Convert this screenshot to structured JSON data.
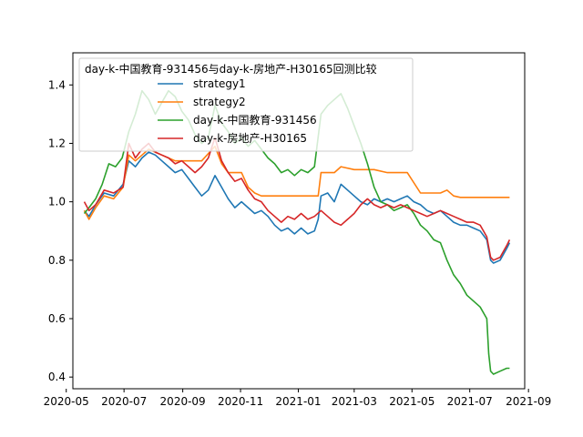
{
  "chart_data": {
    "type": "line",
    "legend_title": "day-k-中国教育-931456与day-k-房地产-H30165回测比较",
    "legend_position": "top-left",
    "grid": false,
    "xlim": [
      "2020-05-08",
      "2021-08-28"
    ],
    "ylim": [
      0.36,
      1.51
    ],
    "x_ticks": [
      "2020-05",
      "2020-07",
      "2020-09",
      "2020-11",
      "2021-01",
      "2021-03",
      "2021-05",
      "2021-07",
      "2021-09"
    ],
    "x_tick_dates": [
      "2020-05-01",
      "2020-07-01",
      "2020-09-01",
      "2020-11-01",
      "2021-01-01",
      "2021-03-01",
      "2021-05-01",
      "2021-07-01",
      "2021-09-01"
    ],
    "y_ticks": [
      0.4,
      0.6,
      0.8,
      1.0,
      1.2,
      1.4
    ],
    "y_tick_labels": [
      "0.4",
      "0.6",
      "0.8",
      "1.0",
      "1.2",
      "1.4"
    ],
    "series": [
      {
        "name": "strategy1",
        "color": "#1f77b4",
        "points": [
          [
            "2020-05-20",
            0.97
          ],
          [
            "2020-05-25",
            0.95
          ],
          [
            "2020-06-01",
            0.99
          ],
          [
            "2020-06-10",
            1.03
          ],
          [
            "2020-06-20",
            1.02
          ],
          [
            "2020-06-30",
            1.06
          ],
          [
            "2020-07-06",
            1.14
          ],
          [
            "2020-07-13",
            1.12
          ],
          [
            "2020-07-20",
            1.15
          ],
          [
            "2020-07-27",
            1.17
          ],
          [
            "2020-08-03",
            1.16
          ],
          [
            "2020-08-10",
            1.14
          ],
          [
            "2020-08-17",
            1.12
          ],
          [
            "2020-08-24",
            1.1
          ],
          [
            "2020-08-31",
            1.11
          ],
          [
            "2020-09-07",
            1.08
          ],
          [
            "2020-09-14",
            1.05
          ],
          [
            "2020-09-21",
            1.02
          ],
          [
            "2020-09-28",
            1.04
          ],
          [
            "2020-10-05",
            1.09
          ],
          [
            "2020-10-12",
            1.05
          ],
          [
            "2020-10-19",
            1.01
          ],
          [
            "2020-10-26",
            0.98
          ],
          [
            "2020-11-02",
            1.0
          ],
          [
            "2020-11-09",
            0.98
          ],
          [
            "2020-11-16",
            0.96
          ],
          [
            "2020-11-23",
            0.97
          ],
          [
            "2020-11-30",
            0.95
          ],
          [
            "2020-12-07",
            0.92
          ],
          [
            "2020-12-14",
            0.9
          ],
          [
            "2020-12-21",
            0.91
          ],
          [
            "2020-12-28",
            0.89
          ],
          [
            "2021-01-04",
            0.91
          ],
          [
            "2021-01-11",
            0.89
          ],
          [
            "2021-01-18",
            0.9
          ],
          [
            "2021-01-22",
            0.94
          ],
          [
            "2021-01-25",
            1.02
          ],
          [
            "2021-02-01",
            1.03
          ],
          [
            "2021-02-08",
            1.0
          ],
          [
            "2021-02-15",
            1.06
          ],
          [
            "2021-02-22",
            1.04
          ],
          [
            "2021-03-01",
            1.02
          ],
          [
            "2021-03-08",
            1.0
          ],
          [
            "2021-03-15",
            0.99
          ],
          [
            "2021-03-22",
            1.01
          ],
          [
            "2021-03-29",
            1.0
          ],
          [
            "2021-04-05",
            1.01
          ],
          [
            "2021-04-12",
            1.0
          ],
          [
            "2021-04-19",
            1.01
          ],
          [
            "2021-04-26",
            1.02
          ],
          [
            "2021-05-03",
            1.0
          ],
          [
            "2021-05-10",
            0.99
          ],
          [
            "2021-05-17",
            0.97
          ],
          [
            "2021-05-24",
            0.96
          ],
          [
            "2021-05-31",
            0.97
          ],
          [
            "2021-06-07",
            0.95
          ],
          [
            "2021-06-14",
            0.93
          ],
          [
            "2021-06-21",
            0.92
          ],
          [
            "2021-06-28",
            0.92
          ],
          [
            "2021-07-05",
            0.91
          ],
          [
            "2021-07-12",
            0.9
          ],
          [
            "2021-07-19",
            0.87
          ],
          [
            "2021-07-23",
            0.8
          ],
          [
            "2021-07-26",
            0.79
          ],
          [
            "2021-08-02",
            0.8
          ],
          [
            "2021-08-09",
            0.84
          ],
          [
            "2021-08-12",
            0.86
          ]
        ]
      },
      {
        "name": "strategy2",
        "color": "#ff7f0e",
        "points": [
          [
            "2020-05-20",
            0.97
          ],
          [
            "2020-05-25",
            0.94
          ],
          [
            "2020-06-01",
            0.98
          ],
          [
            "2020-06-10",
            1.02
          ],
          [
            "2020-06-20",
            1.01
          ],
          [
            "2020-06-30",
            1.05
          ],
          [
            "2020-07-06",
            1.16
          ],
          [
            "2020-07-13",
            1.14
          ],
          [
            "2020-07-20",
            1.16
          ],
          [
            "2020-07-27",
            1.18
          ],
          [
            "2020-08-03",
            1.17
          ],
          [
            "2020-08-10",
            1.16
          ],
          [
            "2020-08-17",
            1.15
          ],
          [
            "2020-08-24",
            1.14
          ],
          [
            "2020-09-07",
            1.14
          ],
          [
            "2020-09-14",
            1.14
          ],
          [
            "2020-09-21",
            1.14
          ],
          [
            "2020-10-05",
            1.19
          ],
          [
            "2020-10-12",
            1.13
          ],
          [
            "2020-10-19",
            1.1
          ],
          [
            "2020-11-02",
            1.1
          ],
          [
            "2020-11-09",
            1.05
          ],
          [
            "2020-11-16",
            1.03
          ],
          [
            "2020-11-23",
            1.02
          ],
          [
            "2020-12-14",
            1.02
          ],
          [
            "2021-01-04",
            1.02
          ],
          [
            "2021-01-18",
            1.02
          ],
          [
            "2021-01-22",
            1.02
          ],
          [
            "2021-01-25",
            1.1
          ],
          [
            "2021-02-08",
            1.1
          ],
          [
            "2021-02-15",
            1.12
          ],
          [
            "2021-03-01",
            1.11
          ],
          [
            "2021-03-22",
            1.11
          ],
          [
            "2021-04-05",
            1.1
          ],
          [
            "2021-04-26",
            1.1
          ],
          [
            "2021-05-10",
            1.03
          ],
          [
            "2021-05-31",
            1.03
          ],
          [
            "2021-06-07",
            1.04
          ],
          [
            "2021-06-14",
            1.02
          ],
          [
            "2021-06-21",
            1.015
          ],
          [
            "2021-08-12",
            1.015
          ]
        ]
      },
      {
        "name": "day-k-中国教育-931456",
        "color": "#2ca02c",
        "points": [
          [
            "2020-05-20",
            0.96
          ],
          [
            "2020-05-25",
            0.98
          ],
          [
            "2020-06-01",
            1.01
          ],
          [
            "2020-06-08",
            1.06
          ],
          [
            "2020-06-15",
            1.13
          ],
          [
            "2020-06-22",
            1.12
          ],
          [
            "2020-06-29",
            1.15
          ],
          [
            "2020-07-06",
            1.24
          ],
          [
            "2020-07-13",
            1.3
          ],
          [
            "2020-07-20",
            1.38
          ],
          [
            "2020-07-27",
            1.35
          ],
          [
            "2020-08-03",
            1.3
          ],
          [
            "2020-08-10",
            1.34
          ],
          [
            "2020-08-17",
            1.38
          ],
          [
            "2020-08-24",
            1.36
          ],
          [
            "2020-08-31",
            1.31
          ],
          [
            "2020-09-07",
            1.28
          ],
          [
            "2020-09-14",
            1.23
          ],
          [
            "2020-09-21",
            1.2
          ],
          [
            "2020-09-28",
            1.22
          ],
          [
            "2020-10-05",
            1.33
          ],
          [
            "2020-10-12",
            1.27
          ],
          [
            "2020-10-19",
            1.24
          ],
          [
            "2020-10-26",
            1.2
          ],
          [
            "2020-11-02",
            1.22
          ],
          [
            "2020-11-09",
            1.19
          ],
          [
            "2020-11-16",
            1.21
          ],
          [
            "2020-11-23",
            1.18
          ],
          [
            "2020-11-30",
            1.15
          ],
          [
            "2020-12-07",
            1.13
          ],
          [
            "2020-12-14",
            1.1
          ],
          [
            "2020-12-21",
            1.11
          ],
          [
            "2020-12-28",
            1.09
          ],
          [
            "2021-01-04",
            1.11
          ],
          [
            "2021-01-11",
            1.1
          ],
          [
            "2021-01-18",
            1.12
          ],
          [
            "2021-01-25",
            1.3
          ],
          [
            "2021-02-01",
            1.33
          ],
          [
            "2021-02-08",
            1.35
          ],
          [
            "2021-02-15",
            1.37
          ],
          [
            "2021-02-22",
            1.32
          ],
          [
            "2021-03-01",
            1.26
          ],
          [
            "2021-03-08",
            1.2
          ],
          [
            "2021-03-15",
            1.13
          ],
          [
            "2021-03-22",
            1.05
          ],
          [
            "2021-03-29",
            1.0
          ],
          [
            "2021-04-05",
            0.99
          ],
          [
            "2021-04-12",
            0.97
          ],
          [
            "2021-04-19",
            0.98
          ],
          [
            "2021-04-26",
            0.99
          ],
          [
            "2021-05-03",
            0.96
          ],
          [
            "2021-05-10",
            0.92
          ],
          [
            "2021-05-17",
            0.9
          ],
          [
            "2021-05-24",
            0.87
          ],
          [
            "2021-05-31",
            0.86
          ],
          [
            "2021-06-07",
            0.8
          ],
          [
            "2021-06-14",
            0.75
          ],
          [
            "2021-06-21",
            0.72
          ],
          [
            "2021-06-28",
            0.68
          ],
          [
            "2021-07-05",
            0.66
          ],
          [
            "2021-07-12",
            0.64
          ],
          [
            "2021-07-19",
            0.6
          ],
          [
            "2021-07-21",
            0.48
          ],
          [
            "2021-07-23",
            0.42
          ],
          [
            "2021-07-26",
            0.41
          ],
          [
            "2021-08-02",
            0.42
          ],
          [
            "2021-08-09",
            0.43
          ],
          [
            "2021-08-12",
            0.43
          ]
        ]
      },
      {
        "name": "day-k-房地产-H30165",
        "color": "#d62728",
        "points": [
          [
            "2020-05-20",
            1.0
          ],
          [
            "2020-05-25",
            0.97
          ],
          [
            "2020-06-01",
            0.99
          ],
          [
            "2020-06-10",
            1.04
          ],
          [
            "2020-06-20",
            1.03
          ],
          [
            "2020-06-30",
            1.05
          ],
          [
            "2020-07-06",
            1.2
          ],
          [
            "2020-07-13",
            1.15
          ],
          [
            "2020-07-20",
            1.18
          ],
          [
            "2020-07-27",
            1.2
          ],
          [
            "2020-08-03",
            1.17
          ],
          [
            "2020-08-10",
            1.16
          ],
          [
            "2020-08-17",
            1.15
          ],
          [
            "2020-08-24",
            1.13
          ],
          [
            "2020-08-31",
            1.14
          ],
          [
            "2020-09-07",
            1.12
          ],
          [
            "2020-09-14",
            1.1
          ],
          [
            "2020-09-21",
            1.12
          ],
          [
            "2020-09-28",
            1.15
          ],
          [
            "2020-10-05",
            1.22
          ],
          [
            "2020-10-12",
            1.14
          ],
          [
            "2020-10-19",
            1.1
          ],
          [
            "2020-10-26",
            1.07
          ],
          [
            "2020-11-02",
            1.08
          ],
          [
            "2020-11-09",
            1.04
          ],
          [
            "2020-11-16",
            1.01
          ],
          [
            "2020-11-23",
            1.0
          ],
          [
            "2020-11-30",
            0.97
          ],
          [
            "2020-12-07",
            0.95
          ],
          [
            "2020-12-14",
            0.93
          ],
          [
            "2020-12-21",
            0.95
          ],
          [
            "2020-12-28",
            0.94
          ],
          [
            "2021-01-04",
            0.96
          ],
          [
            "2021-01-11",
            0.94
          ],
          [
            "2021-01-18",
            0.95
          ],
          [
            "2021-01-25",
            0.97
          ],
          [
            "2021-02-01",
            0.95
          ],
          [
            "2021-02-08",
            0.93
          ],
          [
            "2021-02-15",
            0.92
          ],
          [
            "2021-03-01",
            0.96
          ],
          [
            "2021-03-08",
            0.99
          ],
          [
            "2021-03-15",
            1.01
          ],
          [
            "2021-03-22",
            0.99
          ],
          [
            "2021-03-29",
            0.98
          ],
          [
            "2021-04-05",
            0.99
          ],
          [
            "2021-04-12",
            0.98
          ],
          [
            "2021-04-19",
            0.99
          ],
          [
            "2021-04-26",
            0.98
          ],
          [
            "2021-05-03",
            0.97
          ],
          [
            "2021-05-10",
            0.96
          ],
          [
            "2021-05-17",
            0.95
          ],
          [
            "2021-05-24",
            0.96
          ],
          [
            "2021-05-31",
            0.97
          ],
          [
            "2021-06-07",
            0.96
          ],
          [
            "2021-06-14",
            0.95
          ],
          [
            "2021-06-21",
            0.94
          ],
          [
            "2021-06-28",
            0.93
          ],
          [
            "2021-07-05",
            0.93
          ],
          [
            "2021-07-12",
            0.92
          ],
          [
            "2021-07-19",
            0.88
          ],
          [
            "2021-07-23",
            0.81
          ],
          [
            "2021-07-26",
            0.8
          ],
          [
            "2021-08-02",
            0.81
          ],
          [
            "2021-08-09",
            0.85
          ],
          [
            "2021-08-12",
            0.87
          ]
        ]
      }
    ]
  }
}
